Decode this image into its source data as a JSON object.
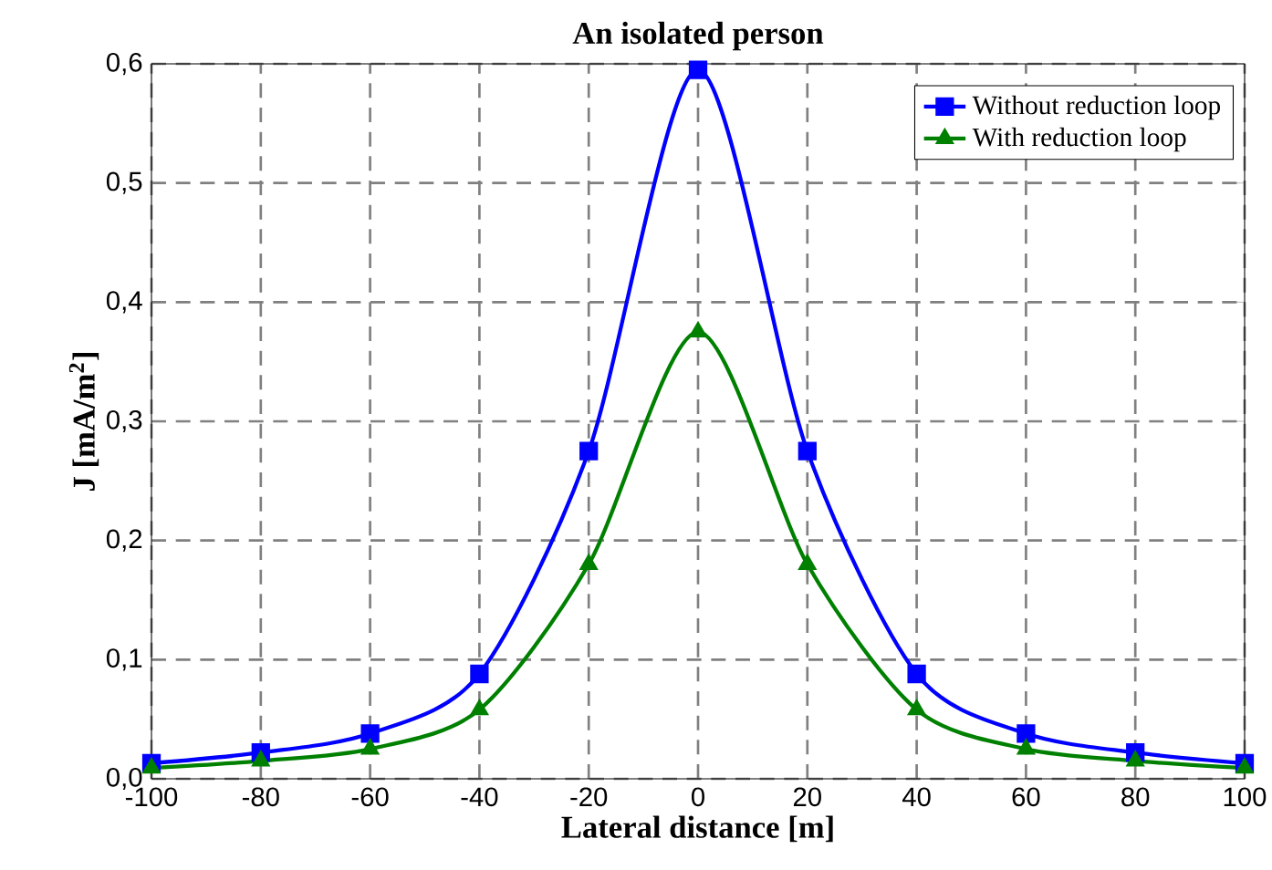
{
  "chart_data": {
    "type": "line",
    "title": "An isolated person",
    "xlabel": "Lateral distance [m]",
    "ylabel": "J [mA/m$^{2}$]",
    "x": [
      -100,
      -80,
      -60,
      -40,
      -20,
      0,
      20,
      40,
      60,
      80,
      100
    ],
    "series": [
      {
        "name": "Without reduction loop",
        "color": "#0000ff",
        "marker": "square",
        "values": [
          0.013,
          0.022,
          0.038,
          0.088,
          0.275,
          0.595,
          0.275,
          0.088,
          0.038,
          0.022,
          0.013
        ]
      },
      {
        "name": "With reduction loop",
        "color": "#008000",
        "marker": "triangle",
        "values": [
          0.009,
          0.015,
          0.025,
          0.058,
          0.18,
          0.375,
          0.18,
          0.058,
          0.025,
          0.015,
          0.009
        ]
      }
    ],
    "xlim": [
      -100,
      100
    ],
    "ylim": [
      0,
      0.6
    ],
    "xticks": [
      -100,
      -80,
      -60,
      -40,
      -20,
      0,
      20,
      40,
      60,
      80,
      100
    ],
    "yticks": [
      {
        "value": 0,
        "label": "0,0"
      },
      {
        "value": 0.1,
        "label": "0,1"
      },
      {
        "value": 0.2,
        "label": "0,2"
      },
      {
        "value": 0.3,
        "label": "0,3"
      },
      {
        "value": 0.4,
        "label": "0,4"
      },
      {
        "value": 0.5,
        "label": "0,5"
      },
      {
        "value": 0.6,
        "label": "0,6"
      }
    ],
    "grid": true,
    "legend": "top right",
    "line_style": "solid"
  }
}
